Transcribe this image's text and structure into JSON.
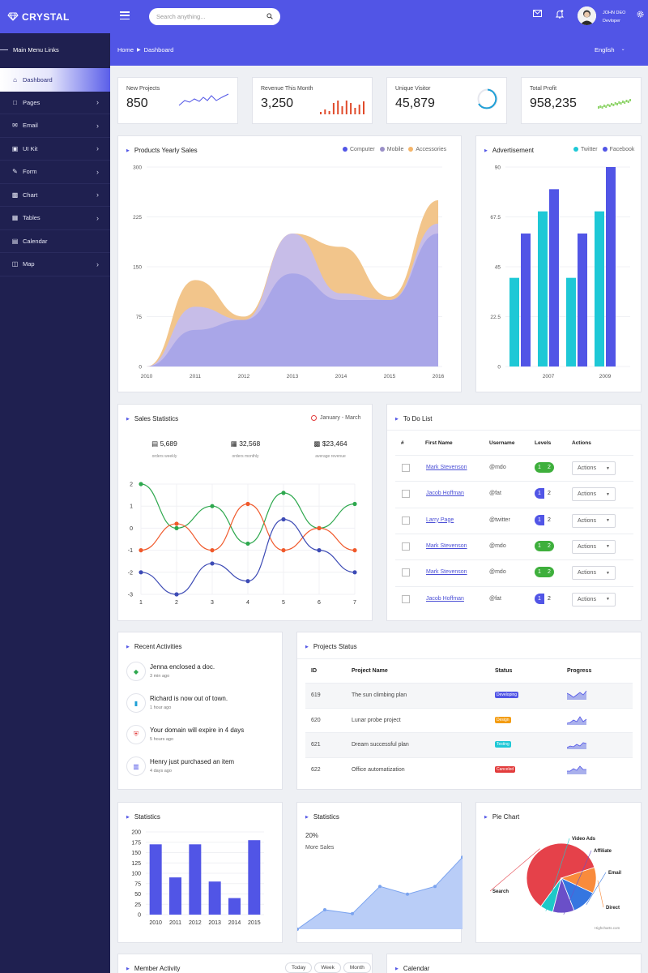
{
  "brand": {
    "name": "CRYSTAL"
  },
  "sidebar": {
    "heading": "Main Menu Links",
    "items": [
      {
        "label": "Dashboard",
        "icon": "home-icon",
        "active": true,
        "has_children": false
      },
      {
        "label": "Pages",
        "icon": "page-icon",
        "has_children": true
      },
      {
        "label": "Email",
        "icon": "envelope-icon",
        "has_children": true
      },
      {
        "label": "UI Kit",
        "icon": "uikit-icon",
        "has_children": true
      },
      {
        "label": "Form",
        "icon": "edit-icon",
        "has_children": true
      },
      {
        "label": "Chart",
        "icon": "chart-icon",
        "has_children": true
      },
      {
        "label": "Tables",
        "icon": "table-icon",
        "has_children": true
      },
      {
        "label": "Calendar",
        "icon": "calendar-icon",
        "has_children": false
      },
      {
        "label": "Map",
        "icon": "map-icon",
        "has_children": true
      }
    ]
  },
  "header": {
    "search_placeholder": "Search anything...",
    "user_name": "JOHN DEO",
    "user_role": "Devloper",
    "breadcrumb": [
      "Home",
      "Dashboard"
    ],
    "language": "English",
    "accent": "#5155e6"
  },
  "stats": [
    {
      "label": "New Projects",
      "value": "850"
    },
    {
      "label": "Revenue This Month",
      "value": "3,250"
    },
    {
      "label": "Unique Visitor",
      "value": "45,879"
    },
    {
      "label": "Total Profit",
      "value": "958,235"
    }
  ],
  "yearly_sales": {
    "title": "Products Yearly Sales",
    "legend": [
      {
        "name": "Computer",
        "color": "#5155e6"
      },
      {
        "name": "Mobile",
        "color": "#9a8fc7"
      },
      {
        "name": "Accessories",
        "color": "#f4b56a"
      }
    ]
  },
  "advertisement": {
    "title": "Advertisement",
    "legend": [
      {
        "name": "Twitter",
        "color": "#1ec8d6"
      },
      {
        "name": "Facebook",
        "color": "#5155e6"
      }
    ]
  },
  "sales_statistics": {
    "title": "Sales Statistics",
    "period": "January - March",
    "kpis": [
      {
        "value": "5,689",
        "label": "orders weekly",
        "icon": "database-icon"
      },
      {
        "value": "32,568",
        "label": "orders monthly",
        "icon": "calendar-icon"
      },
      {
        "value": "$23,464",
        "label": "average revenue",
        "icon": "money-icon"
      }
    ]
  },
  "todo": {
    "title": "To Do List",
    "columns": [
      "#",
      "First Name",
      "Username",
      "Levels",
      "Actions"
    ],
    "rows": [
      {
        "first_name": "Mark Stevenson",
        "username": "@mdo",
        "levels": [
          "1",
          "2"
        ],
        "level_color": "#3eaf3c",
        "action": "Actions"
      },
      {
        "first_name": "Jacob Hoffman",
        "username": "@fat",
        "levels": [
          "1",
          "2"
        ],
        "level_color": "#5155e6",
        "action": "Actions"
      },
      {
        "first_name": "Larry Page",
        "username": "@twitter",
        "levels": [
          "1",
          "2"
        ],
        "level_color": "#5155e6",
        "action": "Actions"
      },
      {
        "first_name": "Mark Stevenson",
        "username": "@mdo",
        "levels": [
          "1",
          "2"
        ],
        "level_color": "#3eaf3c",
        "action": "Actions"
      },
      {
        "first_name": "Mark Stevenson",
        "username": "@mdo",
        "levels": [
          "1",
          "2"
        ],
        "level_color": "#3eaf3c",
        "action": "Actions"
      },
      {
        "first_name": "Jacob Hoffman",
        "username": "@fat",
        "levels": [
          "1",
          "2"
        ],
        "level_color": "#5155e6",
        "action": "Actions"
      }
    ]
  },
  "activities": {
    "title": "Recent Activities",
    "items": [
      {
        "text": "Jenna enclosed a doc.",
        "time": "3 min ago",
        "icon": "diamond-icon",
        "color": "#2ea84e"
      },
      {
        "text": "Richard is now out of town.",
        "time": "1 hour ago",
        "icon": "briefcase-icon",
        "color": "#1e9fd6"
      },
      {
        "text": "Your domain will expire in 4 days",
        "time": "5 hours ago",
        "icon": "shield-icon",
        "color": "#e23c3c"
      },
      {
        "text": "Henry just purchased an item",
        "time": "4 days ago",
        "icon": "bank-icon",
        "color": "#5155e6"
      }
    ]
  },
  "projects": {
    "title": "Projects Status",
    "columns": [
      "ID",
      "Project Name",
      "Status",
      "Progress"
    ],
    "rows": [
      {
        "id": "619",
        "name": "The sun climbing plan",
        "status": "Developing",
        "status_color": "#5155e6"
      },
      {
        "id": "620",
        "name": "Lunar probe project",
        "status": "Design",
        "status_color": "#f39c12"
      },
      {
        "id": "621",
        "name": "Dream successful plan",
        "status": "Testing",
        "status_color": "#1ec8d6"
      },
      {
        "id": "622",
        "name": "Office automatization",
        "status": "Canceled",
        "status_color": "#e23c3c"
      }
    ]
  },
  "statistics_bar": {
    "title": "Statistics"
  },
  "statistics_area": {
    "title": "Statistics",
    "percent": "20%",
    "subtitle": "More Sales"
  },
  "pie": {
    "title": "Pie Chart",
    "credit": "Highcharts.com"
  },
  "member_activity": {
    "title": "Member Activity",
    "tabs": [
      "Today",
      "Week",
      "Month"
    ]
  },
  "calendar": {
    "title": "Calendar"
  },
  "chart_data": [
    {
      "type": "area",
      "title": "Products Yearly Sales",
      "x": [
        2010,
        2011,
        2012,
        2013,
        2014,
        2015,
        2016
      ],
      "ylim": [
        0,
        300
      ],
      "yticks": [
        0,
        75,
        150,
        225,
        300
      ],
      "series": [
        {
          "name": "Computer",
          "values": [
            0,
            55,
            70,
            140,
            100,
            100,
            200
          ]
        },
        {
          "name": "Mobile",
          "values": [
            0,
            90,
            70,
            200,
            110,
            100,
            215
          ]
        },
        {
          "name": "Accessories",
          "values": [
            0,
            130,
            75,
            200,
            180,
            105,
            250
          ]
        }
      ]
    },
    {
      "type": "bar",
      "title": "Advertisement",
      "x_ticks": [
        "2007",
        "2009"
      ],
      "ylim": [
        0,
        90
      ],
      "yticks": [
        0,
        22.5,
        45,
        67.5,
        90
      ],
      "series": [
        {
          "name": "Twitter",
          "values": [
            40,
            70,
            40,
            70
          ]
        },
        {
          "name": "Facebook",
          "values": [
            60,
            80,
            60,
            90
          ]
        }
      ]
    },
    {
      "type": "line",
      "title": "Sales Statistics",
      "x": [
        1,
        2,
        3,
        4,
        5,
        6,
        7
      ],
      "ylim": [
        -3,
        2
      ],
      "yticks": [
        "2",
        "1",
        "0",
        "-1",
        "-2",
        "-3"
      ],
      "series": [
        {
          "color": "#2ea84e",
          "values": [
            2,
            0,
            1,
            -0.7,
            1.6,
            0,
            1.1
          ]
        },
        {
          "color": "#f0592b",
          "values": [
            -1,
            0.2,
            -1,
            1.1,
            -1,
            0,
            -1
          ]
        },
        {
          "color": "#3d4bb5",
          "values": [
            -2,
            -3,
            -1.6,
            -2.4,
            0.4,
            -1,
            -2
          ]
        }
      ]
    },
    {
      "type": "bar",
      "title": "Statistics",
      "categories": [
        "2010",
        "2011",
        "2012",
        "2013",
        "2014",
        "2015"
      ],
      "values": [
        170,
        90,
        170,
        80,
        40,
        180
      ],
      "ylim": [
        0,
        200
      ],
      "yticks": [
        0,
        25,
        50,
        75,
        100,
        125,
        150,
        175,
        200
      ]
    },
    {
      "type": "area",
      "title": "Statistics",
      "values": [
        0,
        10,
        8,
        22,
        18,
        22,
        37
      ]
    },
    {
      "type": "pie",
      "title": "Pie Chart",
      "slices": [
        {
          "name": "Search",
          "value": 60,
          "color": "#e5414a"
        },
        {
          "name": "Direct",
          "value": 12,
          "color": "#f98b3c"
        },
        {
          "name": "Email",
          "value": 12,
          "color": "#3576e0"
        },
        {
          "name": "Affiliate",
          "value": 10,
          "color": "#6a4fc8"
        },
        {
          "name": "Video Ads",
          "value": 6,
          "color": "#1ec8c8"
        }
      ]
    }
  ]
}
